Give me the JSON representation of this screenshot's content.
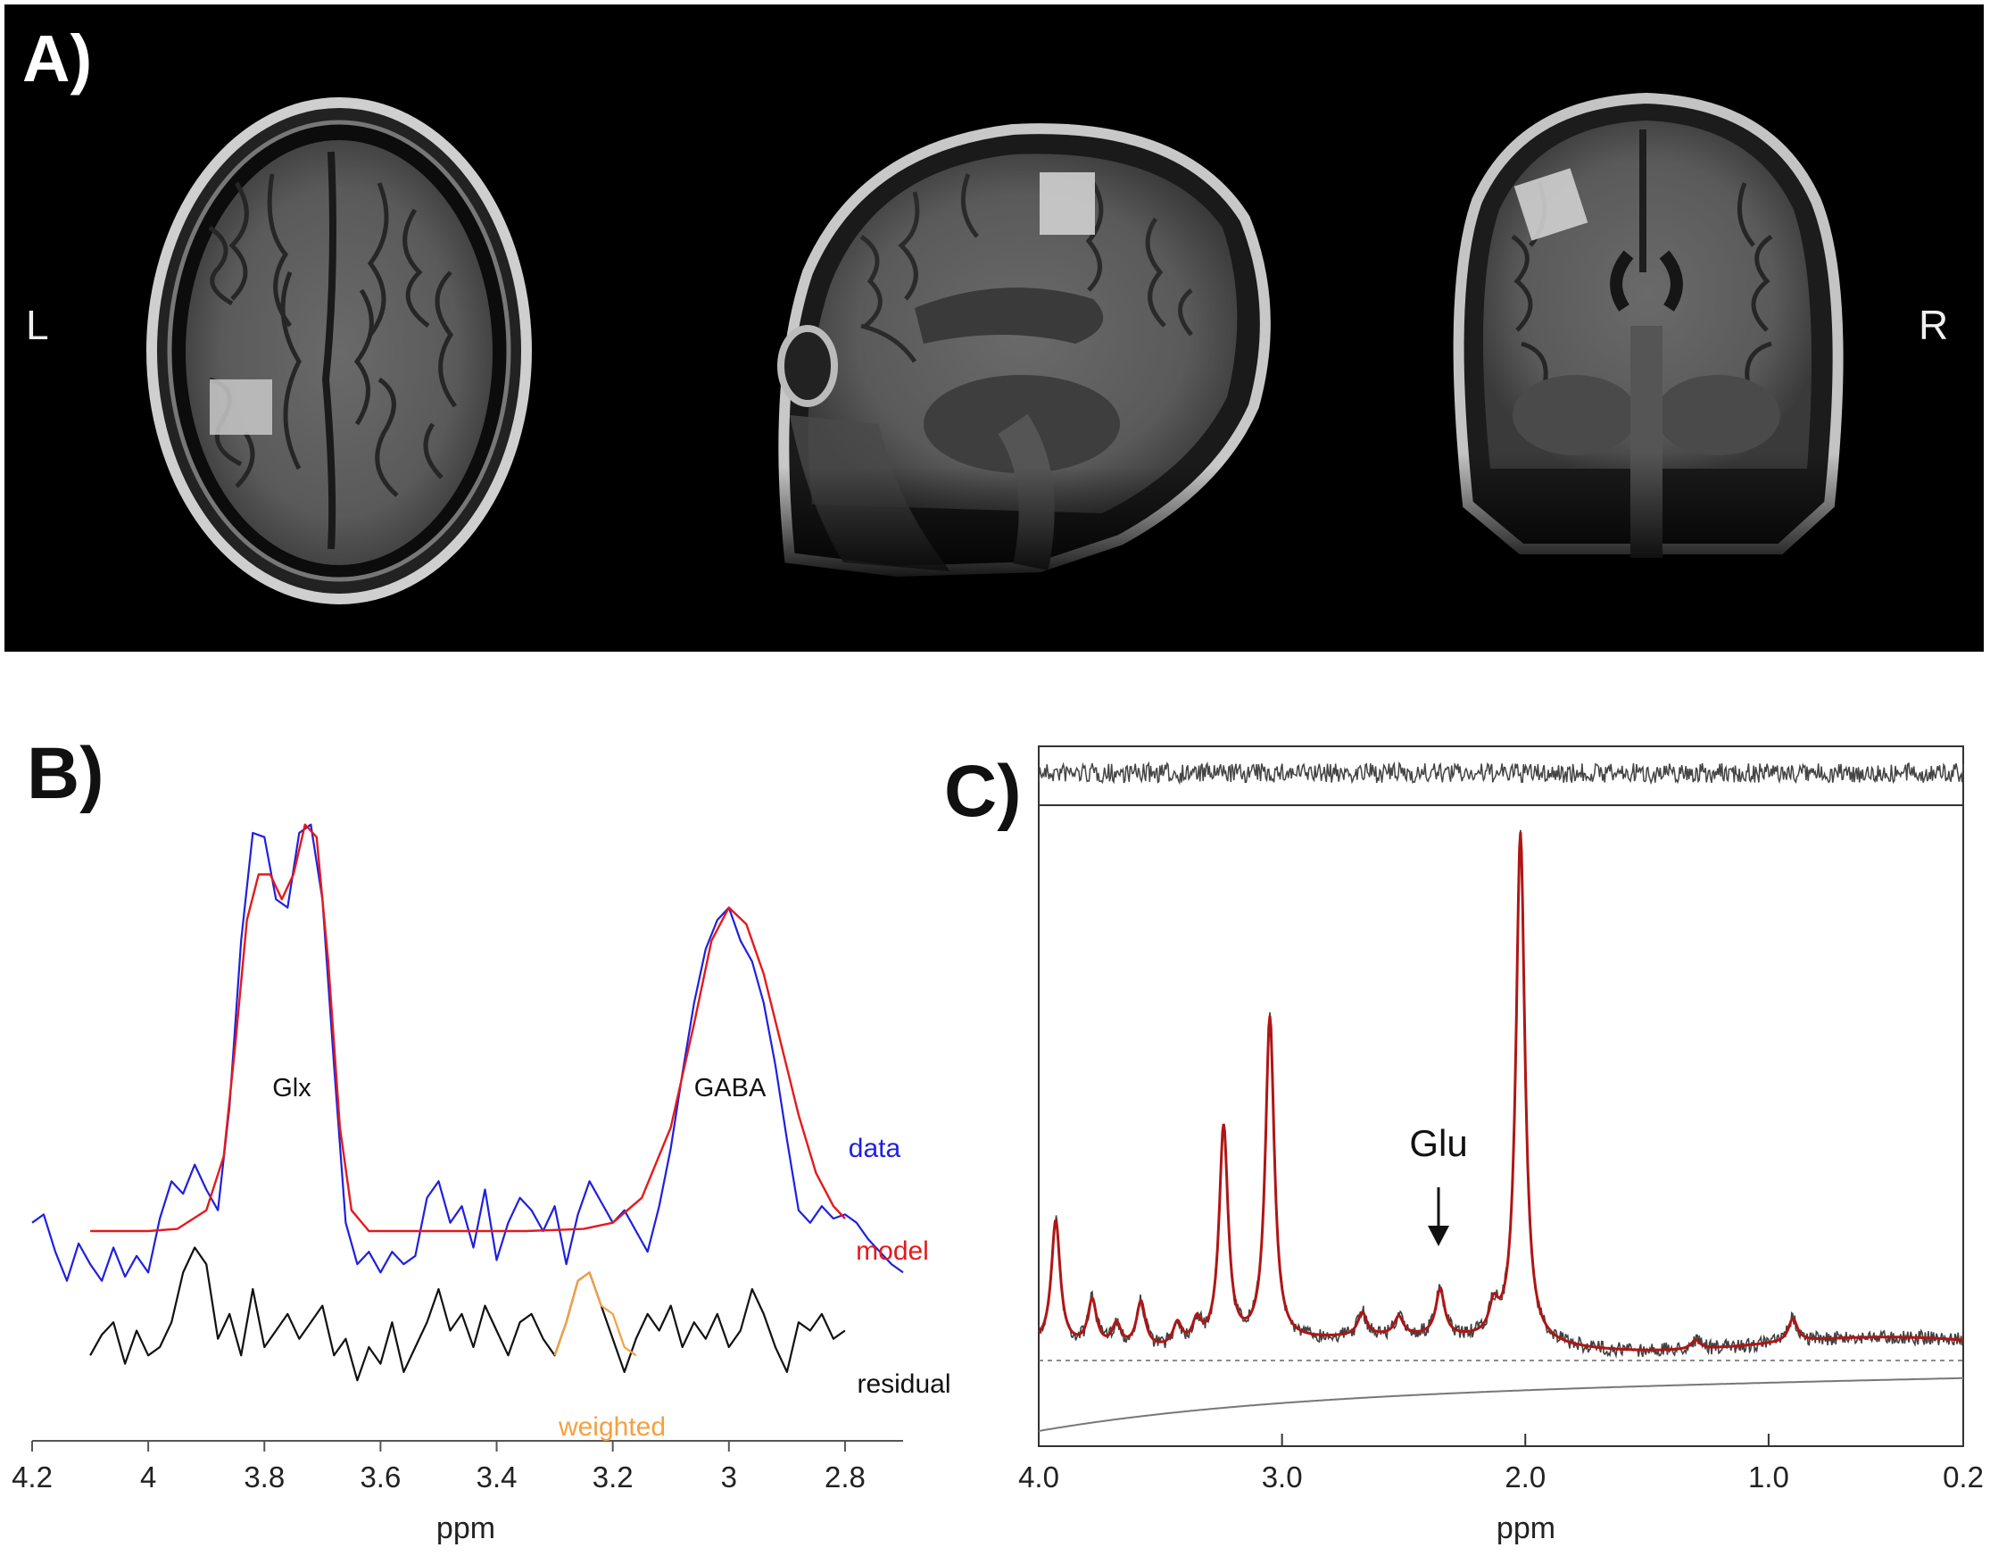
{
  "panels": {
    "a_label": "A)",
    "b_label": "B)",
    "c_label": "C)"
  },
  "panel_a": {
    "left_label": "L",
    "right_label": "R"
  },
  "chart_data": [
    {
      "type": "line",
      "panel": "B)",
      "xlabel": "ppm",
      "xlim": [
        4.2,
        2.7
      ],
      "x_reversed": true,
      "ticks": [
        "4.2",
        "4",
        "3.8",
        "3.6",
        "3.4",
        "3.2",
        "3",
        "2.8"
      ],
      "tick_values": [
        4.2,
        4.0,
        3.8,
        3.6,
        3.4,
        3.2,
        3.0,
        2.8
      ],
      "annotations": {
        "glx": "Glx",
        "gaba": "GABA"
      },
      "legend": {
        "data": "data",
        "model": "model",
        "residual": "residual",
        "weighted": "weighted"
      },
      "colors": {
        "data": "#1f1fe0",
        "model": "#e41a1c",
        "residual": "#111111",
        "weighted": "#f5a040"
      },
      "y_range": [
        -0.45,
        1.1
      ],
      "series": [
        {
          "name": "data",
          "x": [
            4.2,
            4.18,
            4.16,
            4.14,
            4.12,
            4.1,
            4.08,
            4.06,
            4.04,
            4.02,
            4.0,
            3.98,
            3.96,
            3.94,
            3.92,
            3.9,
            3.88,
            3.86,
            3.84,
            3.82,
            3.8,
            3.78,
            3.76,
            3.74,
            3.72,
            3.7,
            3.68,
            3.66,
            3.64,
            3.62,
            3.6,
            3.58,
            3.56,
            3.54,
            3.52,
            3.5,
            3.48,
            3.46,
            3.44,
            3.42,
            3.4,
            3.38,
            3.36,
            3.34,
            3.32,
            3.3,
            3.28,
            3.26,
            3.24,
            3.22,
            3.2,
            3.18,
            3.16,
            3.14,
            3.12,
            3.1,
            3.08,
            3.06,
            3.04,
            3.02,
            3.0,
            2.98,
            2.96,
            2.94,
            2.92,
            2.9,
            2.88,
            2.86,
            2.84,
            2.82,
            2.8,
            2.78,
            2.76,
            2.74,
            2.72,
            2.7
          ],
          "values": [
            0.02,
            0.04,
            -0.05,
            -0.12,
            -0.03,
            -0.08,
            -0.12,
            -0.04,
            -0.11,
            -0.06,
            -0.1,
            0.03,
            0.12,
            0.09,
            0.16,
            0.1,
            0.05,
            0.3,
            0.7,
            0.96,
            0.95,
            0.8,
            0.78,
            0.96,
            0.98,
            0.8,
            0.4,
            0.02,
            -0.08,
            -0.05,
            -0.1,
            -0.05,
            -0.08,
            -0.06,
            0.08,
            0.12,
            0.02,
            0.06,
            -0.04,
            0.1,
            -0.07,
            0.02,
            0.08,
            0.05,
            0.0,
            0.06,
            -0.08,
            0.04,
            0.12,
            0.07,
            0.02,
            0.05,
            0.0,
            -0.05,
            0.06,
            0.2,
            0.38,
            0.55,
            0.68,
            0.75,
            0.78,
            0.7,
            0.65,
            0.55,
            0.4,
            0.22,
            0.05,
            0.02,
            0.06,
            0.03,
            0.04,
            0.02,
            -0.02,
            -0.05,
            -0.08,
            -0.1
          ]
        },
        {
          "name": "model",
          "x": [
            4.1,
            4.0,
            3.95,
            3.9,
            3.87,
            3.85,
            3.83,
            3.81,
            3.79,
            3.77,
            3.75,
            3.73,
            3.71,
            3.69,
            3.67,
            3.65,
            3.62,
            3.55,
            3.45,
            3.35,
            3.25,
            3.2,
            3.15,
            3.1,
            3.06,
            3.03,
            3.0,
            2.97,
            2.94,
            2.91,
            2.88,
            2.85,
            2.82,
            2.8
          ],
          "values": [
            0.0,
            0.0,
            0.005,
            0.05,
            0.18,
            0.45,
            0.75,
            0.86,
            0.86,
            0.8,
            0.86,
            0.98,
            0.95,
            0.65,
            0.25,
            0.05,
            0.0,
            0.0,
            0.0,
            0.0,
            0.005,
            0.02,
            0.08,
            0.25,
            0.5,
            0.7,
            0.78,
            0.74,
            0.62,
            0.45,
            0.28,
            0.14,
            0.06,
            0.03
          ]
        },
        {
          "name": "residual",
          "x": [
            4.1,
            4.08,
            4.06,
            4.04,
            4.02,
            4.0,
            3.98,
            3.96,
            3.94,
            3.92,
            3.9,
            3.88,
            3.86,
            3.84,
            3.82,
            3.8,
            3.78,
            3.76,
            3.74,
            3.72,
            3.7,
            3.68,
            3.66,
            3.64,
            3.62,
            3.6,
            3.58,
            3.56,
            3.54,
            3.52,
            3.5,
            3.48,
            3.46,
            3.44,
            3.42,
            3.4,
            3.38,
            3.36,
            3.34,
            3.32,
            3.3,
            3.28,
            3.26,
            3.24,
            3.22,
            3.2,
            3.18,
            3.16,
            3.14,
            3.12,
            3.1,
            3.08,
            3.06,
            3.04,
            3.02,
            3.0,
            2.98,
            2.96,
            2.94,
            2.92,
            2.9,
            2.88,
            2.86,
            2.84,
            2.82,
            2.8
          ],
          "values": [
            -0.3,
            -0.25,
            -0.22,
            -0.32,
            -0.24,
            -0.3,
            -0.28,
            -0.22,
            -0.1,
            -0.04,
            -0.08,
            -0.26,
            -0.2,
            -0.3,
            -0.14,
            -0.28,
            -0.24,
            -0.2,
            -0.26,
            -0.22,
            -0.18,
            -0.3,
            -0.26,
            -0.36,
            -0.28,
            -0.32,
            -0.22,
            -0.34,
            -0.28,
            -0.22,
            -0.14,
            -0.24,
            -0.2,
            -0.28,
            -0.18,
            -0.24,
            -0.3,
            -0.22,
            -0.2,
            -0.26,
            -0.3,
            -0.22,
            -0.12,
            -0.1,
            -0.18,
            -0.26,
            -0.34,
            -0.26,
            -0.2,
            -0.24,
            -0.18,
            -0.28,
            -0.22,
            -0.26,
            -0.2,
            -0.28,
            -0.24,
            -0.14,
            -0.2,
            -0.28,
            -0.34,
            -0.22,
            -0.24,
            -0.2,
            -0.26,
            -0.24
          ]
        },
        {
          "name": "weighted",
          "x": [
            3.3,
            3.28,
            3.26,
            3.24,
            3.22,
            3.2,
            3.18,
            3.16
          ],
          "values": [
            -0.3,
            -0.22,
            -0.12,
            -0.1,
            -0.18,
            -0.2,
            -0.28,
            -0.3
          ]
        }
      ]
    },
    {
      "type": "line",
      "panel": "C)",
      "xlabel": "ppm",
      "xlim": [
        4.0,
        0.2
      ],
      "x_reversed": true,
      "ticks": [
        "4.0",
        "3.0",
        "2.0",
        "1.0",
        "0.2"
      ],
      "tick_values": [
        4.0,
        3.0,
        2.0,
        1.0,
        0.2
      ],
      "annotations": {
        "glu": "Glu"
      },
      "colors": {
        "fit": "#b01515",
        "data": "#404040",
        "baseline": "#777777"
      },
      "peaks": [
        {
          "ppm": 3.93,
          "height": 0.27
        },
        {
          "ppm": 3.78,
          "height": 0.1
        },
        {
          "ppm": 3.68,
          "height": 0.05
        },
        {
          "ppm": 3.58,
          "height": 0.1
        },
        {
          "ppm": 3.43,
          "height": 0.05
        },
        {
          "ppm": 3.35,
          "height": 0.05
        },
        {
          "ppm": 3.24,
          "height": 0.47
        },
        {
          "ppm": 3.05,
          "height": 0.7
        },
        {
          "ppm": 2.67,
          "height": 0.05
        },
        {
          "ppm": 2.52,
          "height": 0.04
        },
        {
          "ppm": 2.35,
          "height": 0.1
        },
        {
          "ppm": 2.13,
          "height": 0.06
        },
        {
          "ppm": 2.02,
          "height": 1.1
        },
        {
          "ppm": 1.3,
          "height": 0.02
        },
        {
          "ppm": 0.9,
          "height": 0.05
        }
      ]
    }
  ]
}
